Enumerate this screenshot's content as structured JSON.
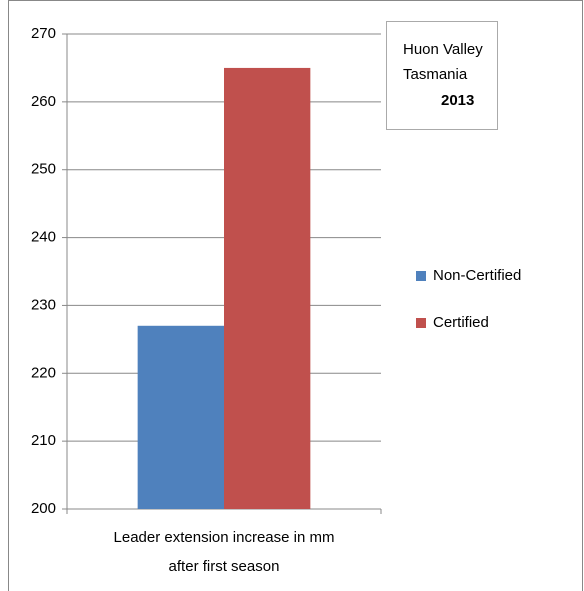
{
  "chart_data": {
    "type": "bar",
    "categories": [
      "Leader extension increase in mm after first season"
    ],
    "series": [
      {
        "name": "Non-Certified",
        "color": "#4f81bd",
        "values": [
          227
        ]
      },
      {
        "name": "Certified",
        "color": "#c0504d",
        "values": [
          265
        ]
      }
    ],
    "ylim": [
      200,
      270
    ],
    "yticks": [
      200,
      210,
      220,
      230,
      240,
      250,
      260,
      270
    ],
    "grid": true,
    "legend": "right",
    "annotation": [
      "Huon Valley",
      "Tasmania",
      "2013"
    ]
  }
}
